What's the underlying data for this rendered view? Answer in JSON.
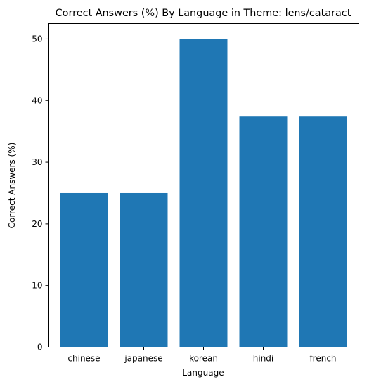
{
  "chart_data": {
    "type": "bar",
    "title": "Correct Answers (%) By Language in Theme: lens/cataract",
    "xlabel": "Language",
    "ylabel": "Correct Answers (%)",
    "categories": [
      "chinese",
      "japanese",
      "korean",
      "hindi",
      "french"
    ],
    "values": [
      25,
      25,
      50,
      37.5,
      37.5
    ],
    "ylim": [
      0,
      52.5
    ],
    "yticks": [
      0,
      10,
      20,
      30,
      40,
      50
    ],
    "grid": false,
    "legend": "none",
    "bar_color": "#1f77b4"
  }
}
